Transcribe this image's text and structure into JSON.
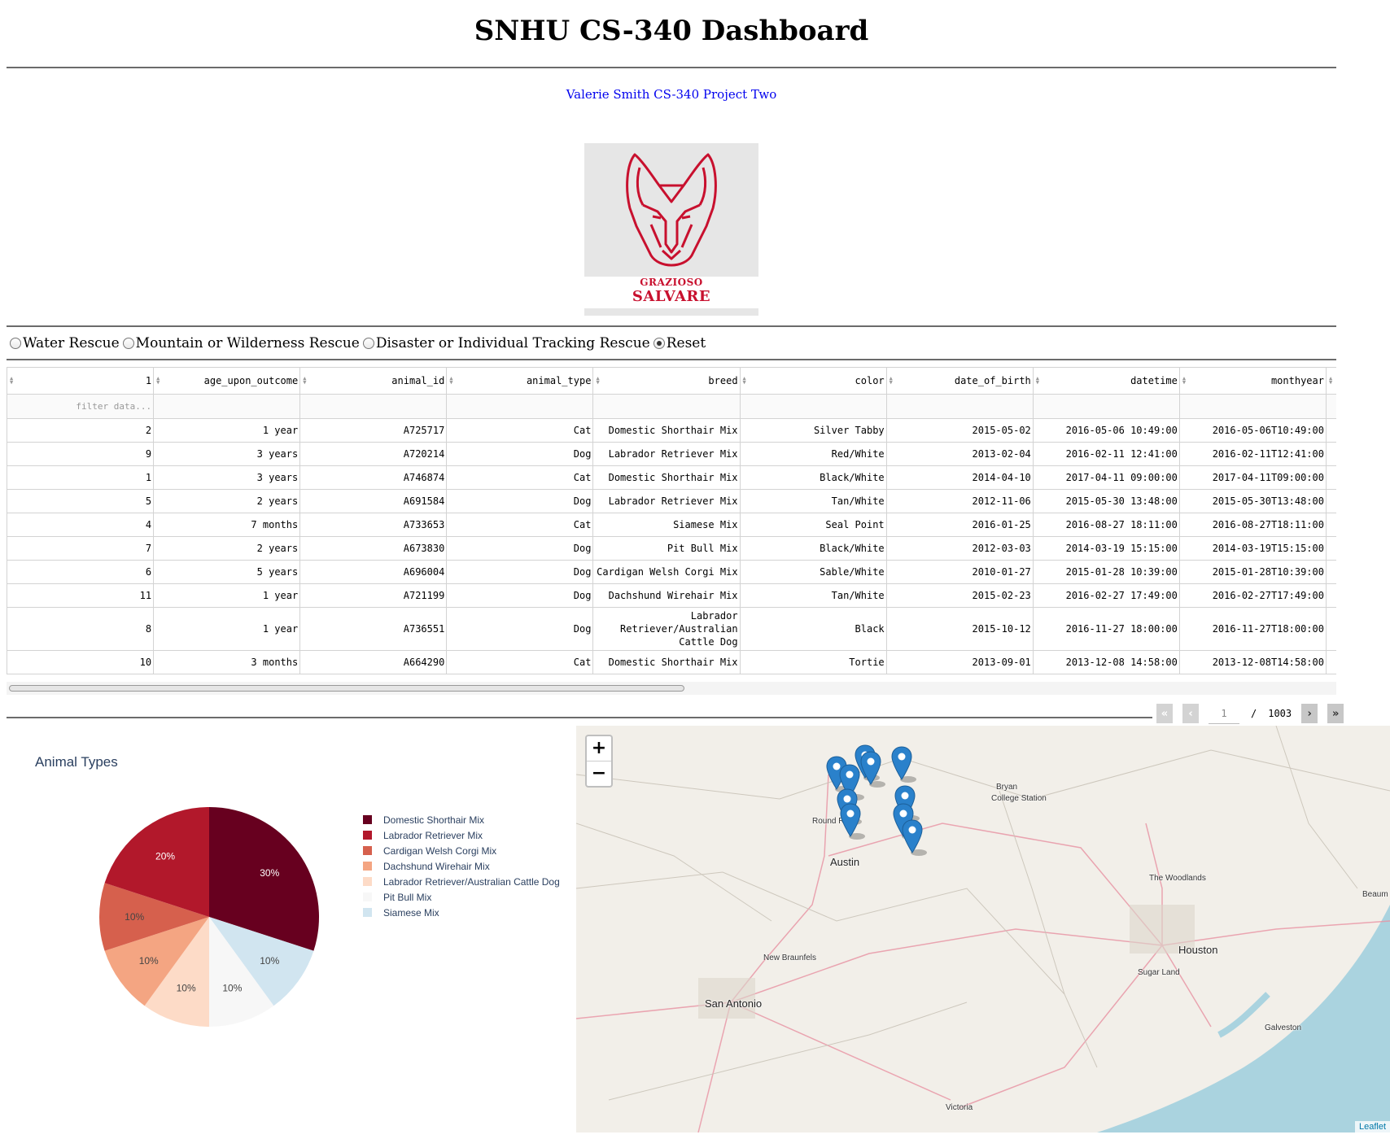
{
  "header": {
    "title": "SNHU CS-340 Dashboard",
    "subtitle_link": "Valerie Smith CS-340 Project Two"
  },
  "logo": {
    "line1": "GRAZIOSO",
    "line2": "SALVARE"
  },
  "filters": {
    "options": [
      {
        "label": "Water Rescue",
        "selected": false
      },
      {
        "label": "Mountain or Wilderness Rescue",
        "selected": false
      },
      {
        "label": "Disaster or Individual Tracking Rescue",
        "selected": false
      },
      {
        "label": "Reset",
        "selected": true
      }
    ]
  },
  "table": {
    "columns": [
      "1",
      "age_upon_outcome",
      "animal_id",
      "animal_type",
      "breed",
      "color",
      "date_of_birth",
      "datetime",
      "monthyear"
    ],
    "filter_placeholder": "filter data...",
    "rows": [
      [
        "2",
        "1 year",
        "A725717",
        "Cat",
        "Domestic Shorthair Mix",
        "Silver Tabby",
        "2015-05-02",
        "2016-05-06 10:49:00",
        "2016-05-06T10:49:00"
      ],
      [
        "9",
        "3 years",
        "A720214",
        "Dog",
        "Labrador Retriever Mix",
        "Red/White",
        "2013-02-04",
        "2016-02-11 12:41:00",
        "2016-02-11T12:41:00"
      ],
      [
        "1",
        "3 years",
        "A746874",
        "Cat",
        "Domestic Shorthair Mix",
        "Black/White",
        "2014-04-10",
        "2017-04-11 09:00:00",
        "2017-04-11T09:00:00"
      ],
      [
        "5",
        "2 years",
        "A691584",
        "Dog",
        "Labrador Retriever Mix",
        "Tan/White",
        "2012-11-06",
        "2015-05-30 13:48:00",
        "2015-05-30T13:48:00"
      ],
      [
        "4",
        "7 months",
        "A733653",
        "Cat",
        "Siamese Mix",
        "Seal Point",
        "2016-01-25",
        "2016-08-27 18:11:00",
        "2016-08-27T18:11:00"
      ],
      [
        "7",
        "2 years",
        "A673830",
        "Dog",
        "Pit Bull Mix",
        "Black/White",
        "2012-03-03",
        "2014-03-19 15:15:00",
        "2014-03-19T15:15:00"
      ],
      [
        "6",
        "5 years",
        "A696004",
        "Dog",
        "Cardigan Welsh Corgi Mix",
        "Sable/White",
        "2010-01-27",
        "2015-01-28 10:39:00",
        "2015-01-28T10:39:00"
      ],
      [
        "11",
        "1 year",
        "A721199",
        "Dog",
        "Dachshund Wirehair Mix",
        "Tan/White",
        "2015-02-23",
        "2016-02-27 17:49:00",
        "2016-02-27T17:49:00"
      ],
      [
        "8",
        "1 year",
        "A736551",
        "Dog",
        "Labrador Retriever/Australian Cattle Dog",
        "Black",
        "2015-10-12",
        "2016-11-27 18:00:00",
        "2016-11-27T18:00:00"
      ],
      [
        "10",
        "3 months",
        "A664290",
        "Cat",
        "Domestic Shorthair Mix",
        "Tortie",
        "2013-09-01",
        "2013-12-08 14:58:00",
        "2013-12-08T14:58:00"
      ]
    ]
  },
  "pagination": {
    "current_page": "1",
    "separator": "/",
    "total_pages": "1003"
  },
  "chart_data": {
    "type": "pie",
    "title": "Animal Types",
    "categories": [
      "Domestic Shorthair Mix",
      "Labrador Retriever Mix",
      "Cardigan Welsh Corgi Mix",
      "Dachshund Wirehair Mix",
      "Labrador Retriever/Australian Cattle Dog",
      "Pit Bull Mix",
      "Siamese Mix"
    ],
    "values": [
      30,
      20,
      10,
      10,
      10,
      10,
      10
    ],
    "labels": [
      "30%",
      "20%",
      "10%",
      "10%",
      "10%",
      "10%",
      "10%"
    ],
    "colors": [
      "#67001f",
      "#b2182b",
      "#d6604d",
      "#f4a582",
      "#fddbc7",
      "#f7f7f7",
      "#d1e5f0"
    ],
    "legend_position": "right"
  },
  "map": {
    "zoom_in": "+",
    "zoom_out": "−",
    "attribution": "Leaflet",
    "marker_icon": "map-pin-icon",
    "marker_color": "#2a81cb",
    "cities": [
      "Austin",
      "Round Rock",
      "Bryan",
      "College Station",
      "The Woodlands",
      "Houston",
      "Sugar Land",
      "Galveston",
      "New Braunfels",
      "San Antonio",
      "Victoria",
      "Beaum"
    ]
  }
}
